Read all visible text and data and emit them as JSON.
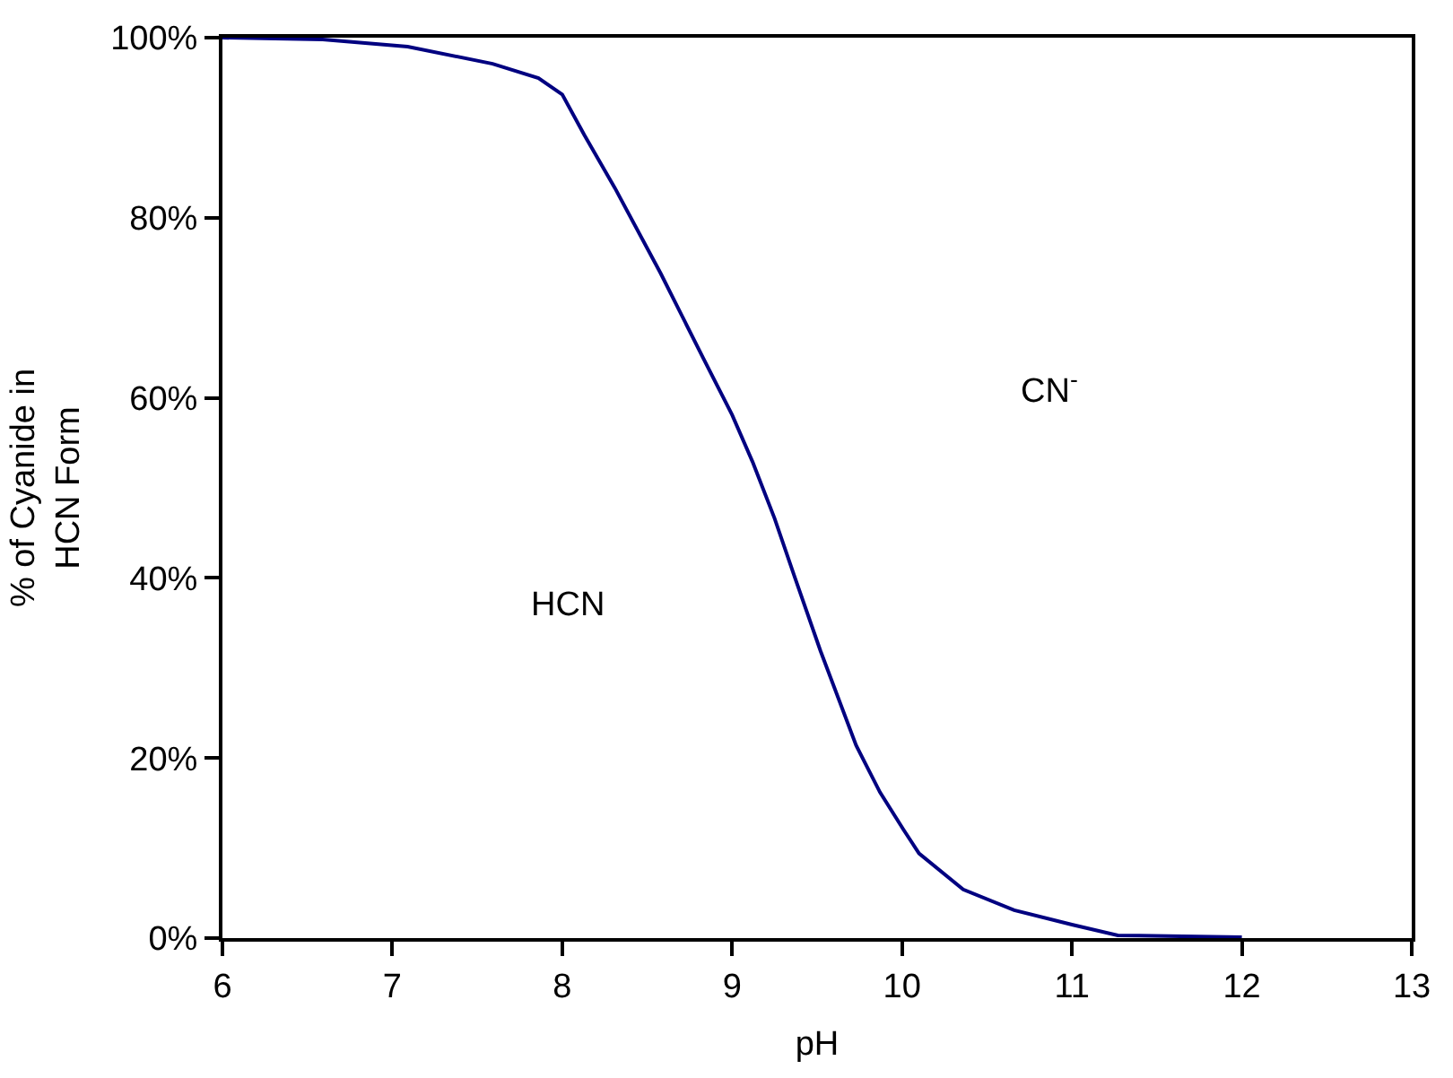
{
  "chart_data": {
    "type": "line",
    "xlabel": "pH",
    "ylabel": "% of Cyanide in HCN Form",
    "x": [
      6,
      6.59,
      7.09,
      7.59,
      7.86,
      8,
      8.13,
      8.31,
      8.58,
      8.83,
      9,
      9.12,
      9.25,
      9.37,
      9.52,
      9.73,
      9.87,
      10.01,
      10.1,
      10.36,
      10.66,
      11,
      11.27,
      12
    ],
    "series": [
      {
        "color": "#000080",
        "values": [
          100,
          99.8,
          99,
          97.1,
          95.5,
          93.7,
          89.2,
          83.3,
          73.8,
          64.4,
          58.1,
          52.9,
          46.6,
          40,
          31.9,
          21.4,
          16.2,
          12,
          9.4,
          5.4,
          3.1,
          1.5,
          0.3,
          0.1
        ]
      }
    ],
    "xlim": [
      6,
      13
    ],
    "xticks": [
      6,
      7,
      8,
      9,
      10,
      11,
      12,
      13
    ],
    "ylim": [
      0,
      100
    ],
    "yticks": [
      {
        "value": 0,
        "label": "0%"
      },
      {
        "value": 20,
        "label": "20%"
      },
      {
        "value": 40,
        "label": "40%"
      },
      {
        "value": 60,
        "label": "60%"
      },
      {
        "value": 80,
        "label": "80%"
      },
      {
        "value": 100,
        "label": "100%"
      }
    ],
    "annotations": [
      "HCN",
      "CN$^{-}$"
    ],
    "grid": false,
    "legend": false,
    "marker": "none",
    "line_style": "solid"
  }
}
